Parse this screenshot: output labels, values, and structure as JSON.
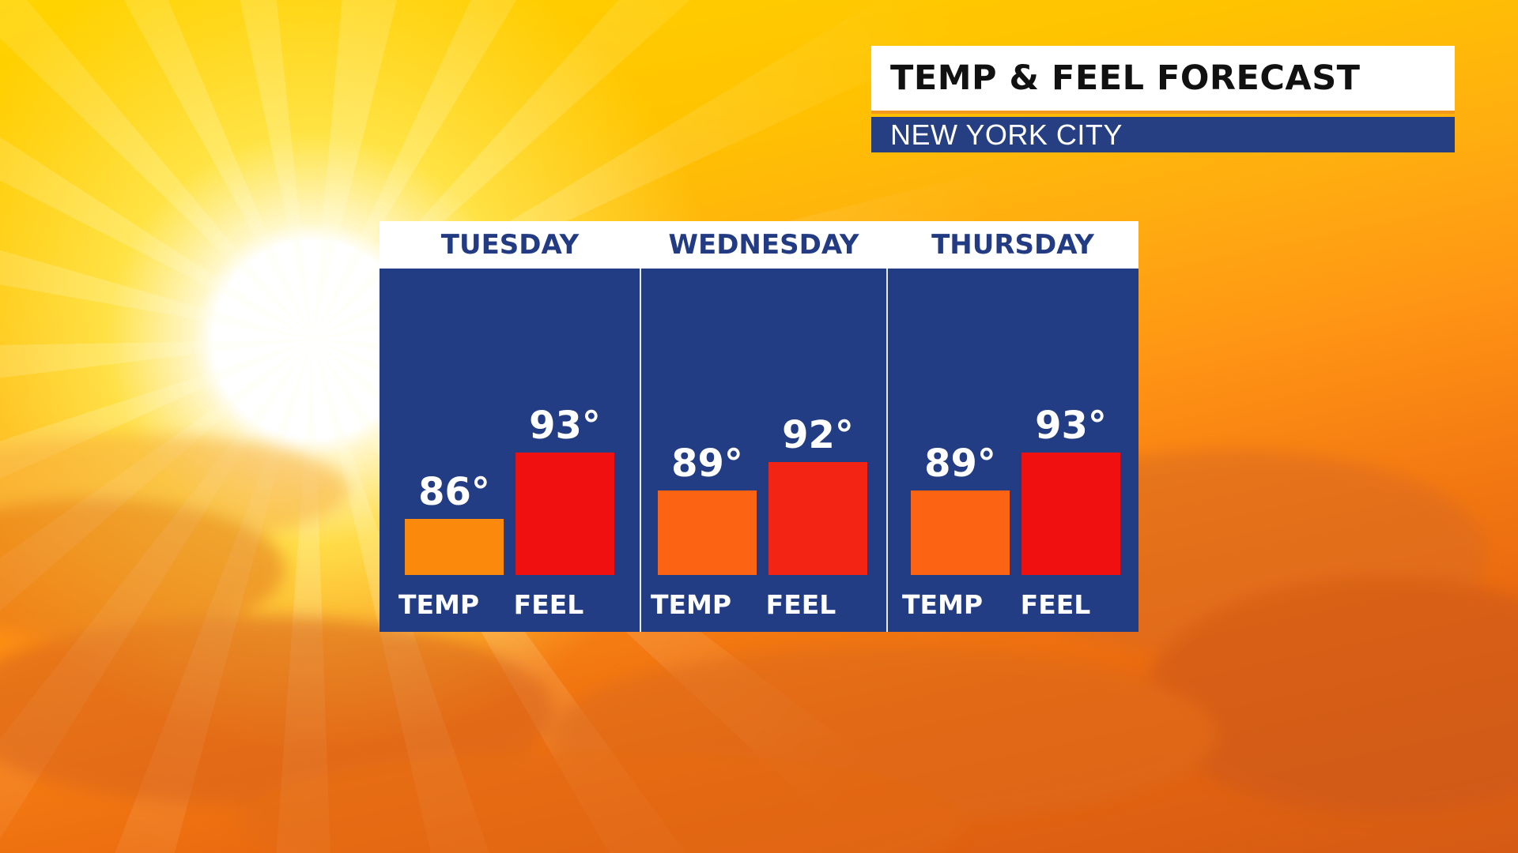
{
  "header": {
    "title": "TEMP & FEEL FORECAST",
    "location": "NEW YORK CITY"
  },
  "colors": {
    "panel_bg": "#233d84",
    "header_bg": "#ffffff",
    "day_text": "#233b82",
    "temp_bar_tuesday": "#fb8a0c",
    "temp_bar": "#fc6414",
    "feel_bar_wednesday": "#f42414",
    "feel_bar": "#f01010",
    "title_underline": "#f39a1c",
    "subtitle_bg": "#263f82"
  },
  "chart_data": {
    "type": "bar",
    "categories": [
      "TUESDAY",
      "WEDNESDAY",
      "THURSDAY"
    ],
    "bar_labels": [
      "TEMP",
      "FEEL"
    ],
    "degree_symbol": "°",
    "series": [
      {
        "name": "TEMP",
        "values": [
          86,
          89,
          89
        ]
      },
      {
        "name": "FEEL",
        "values": [
          93,
          92,
          93
        ]
      }
    ],
    "data_labels": [
      [
        "86°",
        "93°"
      ],
      [
        "89°",
        "92°"
      ],
      [
        "89°",
        "93°"
      ]
    ],
    "ylim": [
      80,
      100
    ],
    "grid": false,
    "legend": "none"
  }
}
